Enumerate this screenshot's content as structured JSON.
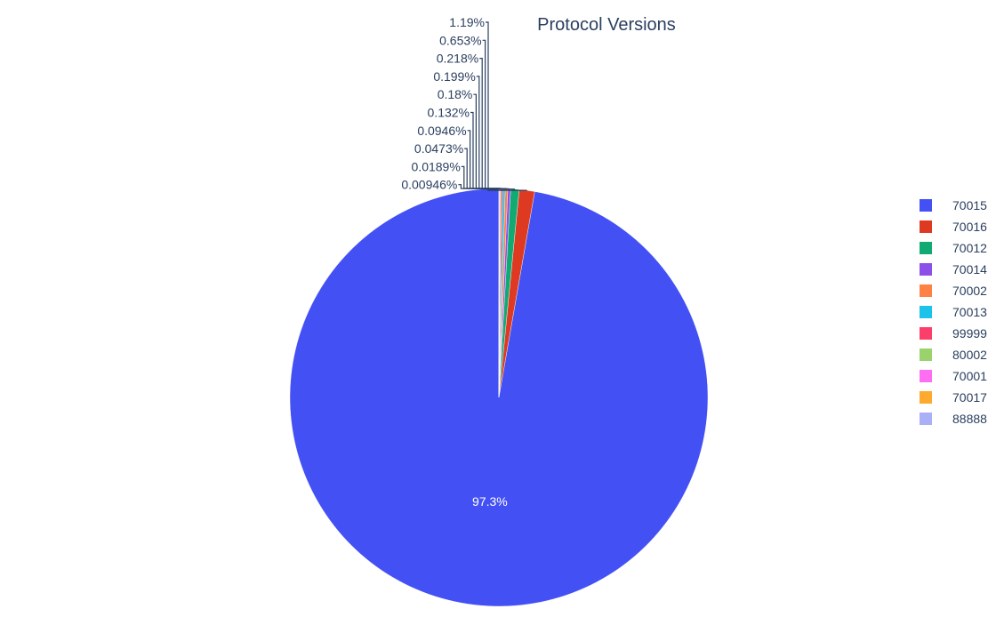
{
  "chart_data": {
    "type": "pie",
    "title": "Protocol Versions",
    "legend_position": "right",
    "slices": [
      {
        "label": "70015",
        "percent": 97.3,
        "display": "97.3%",
        "color": "#4350f4"
      },
      {
        "label": "70016",
        "percent": 1.19,
        "display": "1.19%",
        "color": "#de3a22"
      },
      {
        "label": "70012",
        "percent": 0.653,
        "display": "0.653%",
        "color": "#12aa73"
      },
      {
        "label": "70014",
        "percent": 0.218,
        "display": "0.218%",
        "color": "#8c50e9"
      },
      {
        "label": "70002",
        "percent": 0.199,
        "display": "0.199%",
        "color": "#fe8146"
      },
      {
        "label": "70013",
        "percent": 0.18,
        "display": "0.18%",
        "color": "#1bc2e9"
      },
      {
        "label": "99999",
        "percent": 0.132,
        "display": "0.132%",
        "color": "#fb3f6a"
      },
      {
        "label": "80002",
        "percent": 0.0946,
        "display": "0.0946%",
        "color": "#9ad36c"
      },
      {
        "label": "70001",
        "percent": 0.0473,
        "display": "0.0473%",
        "color": "#fe6ef2"
      },
      {
        "label": "70017",
        "percent": 0.0189,
        "display": "0.0189%",
        "color": "#fdaa2f"
      },
      {
        "label": "88888",
        "percent": 0.00946,
        "display": "0.00946%",
        "color": "#aab0f6"
      }
    ]
  }
}
